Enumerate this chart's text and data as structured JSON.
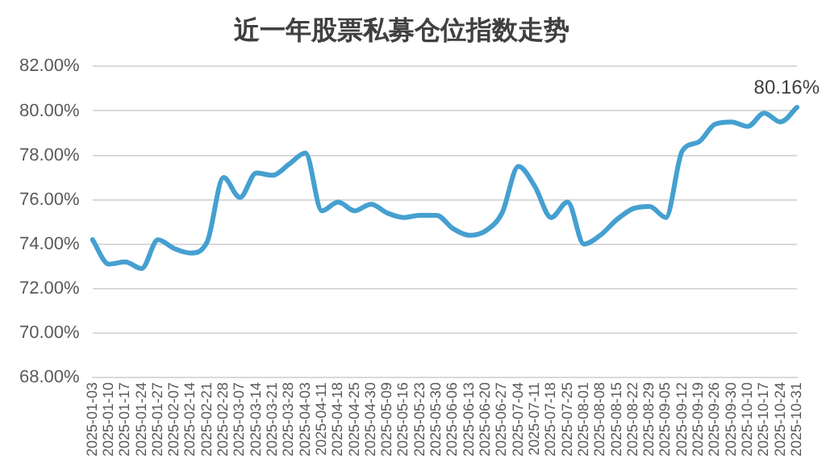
{
  "chart_data": {
    "type": "line",
    "title": "近一年股票私募仓位指数走势",
    "categories": [
      "2025-01-03",
      "2025-01-10",
      "2025-01-17",
      "2025-01-24",
      "2025-01-27",
      "2025-02-07",
      "2025-02-14",
      "2025-02-21",
      "2025-02-28",
      "2025-03-07",
      "2025-03-14",
      "2025-03-21",
      "2025-03-28",
      "2025-04-03",
      "2025-04-11",
      "2025-04-18",
      "2025-04-25",
      "2025-04-30",
      "2025-05-09",
      "2025-05-16",
      "2025-05-23",
      "2025-05-30",
      "2025-06-06",
      "2025-06-13",
      "2025-06-20",
      "2025-06-27",
      "2025-07-04",
      "2025-07-11",
      "2025-07-18",
      "2025-07-25",
      "2025-08-01",
      "2025-08-08",
      "2025-08-15",
      "2025-08-22",
      "2025-08-29",
      "2025-09-05",
      "2025-09-12",
      "2025-09-19",
      "2025-09-26",
      "2025-09-30",
      "2025-10-10",
      "2025-10-17",
      "2025-10-24",
      "2025-10-31"
    ],
    "series": [
      {
        "color": "#45a0d0",
        "values": [
          74.2,
          73.1,
          73.2,
          72.9,
          74.2,
          73.8,
          73.6,
          74.1,
          77.0,
          76.1,
          77.2,
          77.1,
          77.6,
          78.1,
          75.5,
          75.9,
          75.5,
          75.8,
          75.4,
          75.2,
          75.3,
          75.3,
          74.7,
          74.4,
          74.6,
          75.4,
          77.5,
          76.6,
          75.2,
          75.9,
          74.0,
          74.4,
          75.1,
          75.6,
          75.7,
          75.2,
          78.2,
          78.6,
          79.4,
          79.5,
          79.3,
          79.9,
          79.5,
          80.16
        ],
        "value_labels": [
          null,
          null,
          null,
          null,
          null,
          null,
          null,
          null,
          null,
          null,
          null,
          null,
          null,
          null,
          null,
          null,
          null,
          null,
          null,
          null,
          null,
          null,
          null,
          null,
          null,
          null,
          null,
          null,
          null,
          null,
          null,
          null,
          null,
          null,
          null,
          null,
          null,
          null,
          null,
          null,
          null,
          null,
          null,
          "80.16%"
        ]
      }
    ],
    "ylim": [
      68,
      82
    ],
    "yticks": [
      {
        "value": 68,
        "label": "68.00%"
      },
      {
        "value": 70,
        "label": "70.00%"
      },
      {
        "value": 72,
        "label": "72.00%"
      },
      {
        "value": 74,
        "label": "74.00%"
      },
      {
        "value": 76,
        "label": "76.00%"
      },
      {
        "value": 78,
        "label": "78.00%"
      },
      {
        "value": 80,
        "label": "80.00%"
      },
      {
        "value": 82,
        "label": "82.00%"
      }
    ],
    "grid": "y",
    "legend": false,
    "marker": "none",
    "line_style": "solid"
  }
}
